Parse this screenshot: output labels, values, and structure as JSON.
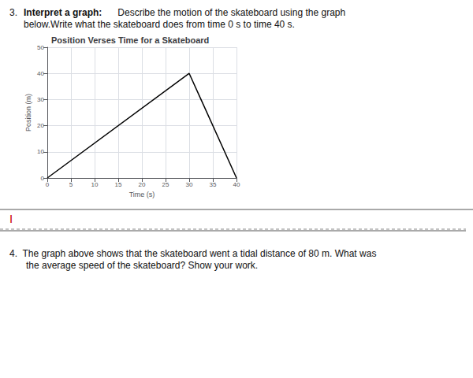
{
  "chart_data": {
    "type": "line",
    "title": "Position Verses Time for a Skateboard",
    "xlabel": "Time (s)",
    "ylabel": "Position (m)",
    "x": [
      0,
      30,
      40
    ],
    "values": [
      0,
      40,
      0
    ],
    "color": "#000000",
    "xlim": [
      0,
      40
    ],
    "ylim": [
      0,
      50
    ],
    "xticks": [
      0,
      5,
      10,
      15,
      20,
      25,
      30,
      35,
      40
    ],
    "yticks": [
      0,
      10,
      20,
      30,
      40,
      50
    ],
    "grid": true,
    "annotations": [
      "3.",
      "Interpret a graph:",
      " Describe the motion of the skateboard using the graph",
      "below.Write what the skateboard does from time 0 s to time 40 s.",
      "I",
      "4.  The graph above shows that the skateboard went a tidal distance of 80 m. What was",
      "the average speed of the skateboard? Show your work."
    ]
  }
}
